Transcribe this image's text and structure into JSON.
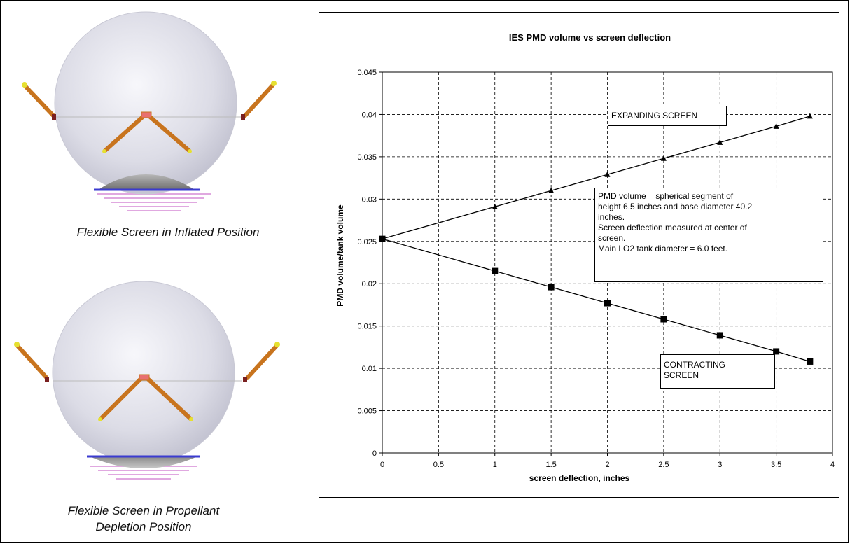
{
  "illustrations": [
    {
      "caption": "Flexible Screen in Inflated Position",
      "icon": "tank-inflated-screen-icon"
    },
    {
      "caption_lines": [
        "Flexible Screen in Propellant",
        "Depletion Position"
      ],
      "icon": "tank-depleted-screen-icon"
    }
  ],
  "chart_data": {
    "type": "line",
    "title": "IES PMD volume vs screen deflection",
    "xlabel": "screen deflection, inches",
    "ylabel": "PMD volume/tank volume",
    "xlim": [
      0,
      4
    ],
    "ylim": [
      0,
      0.045
    ],
    "x_ticks": [
      "0",
      "0.5",
      "1",
      "1.5",
      "2",
      "2.5",
      "3",
      "3.5",
      "4"
    ],
    "y_ticks": [
      "0",
      "0.005",
      "0.01",
      "0.015",
      "0.02",
      "0.025",
      "0.03",
      "0.035",
      "0.04",
      "0.045"
    ],
    "grid": true,
    "series": [
      {
        "marker": "triangle",
        "color": "#000000",
        "x": [
          0,
          1,
          1.5,
          2,
          2.5,
          3,
          3.5,
          3.8
        ],
        "y": [
          0.0253,
          0.0291,
          0.031,
          0.0329,
          0.0348,
          0.0367,
          0.0386,
          0.0398
        ]
      },
      {
        "marker": "square",
        "color": "#000000",
        "x": [
          0,
          1,
          1.5,
          2,
          2.5,
          3,
          3.5,
          3.8
        ],
        "y": [
          0.0253,
          0.0215,
          0.0196,
          0.0177,
          0.0158,
          0.0139,
          0.012,
          0.0108
        ]
      }
    ],
    "annotations": {
      "expanding": "EXPANDING SCREEN",
      "contracting_lines": [
        "CONTRACTING",
        "SCREEN"
      ],
      "note_lines": [
        "PMD volume = spherical segment of",
        "height 6.5 inches and base diameter 40.2",
        "inches.",
        "Screen deflection measured at center of",
        "screen.",
        "Main LO2 tank diameter = 6.0 feet."
      ]
    }
  }
}
